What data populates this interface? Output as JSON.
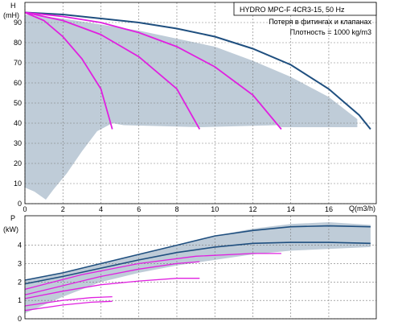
{
  "chart_data": [
    {
      "type": "line",
      "title": "HYDRO MPC-F 4CR3-15, 50 Hz",
      "annotations": [
        "Потеря в фитингах и клапанах",
        "Плотность = 1000 kg/m3"
      ],
      "ylabel": "H",
      "yunit": "(mH)",
      "xlabel": "Q(m3/h)",
      "xlim": [
        0,
        18.5
      ],
      "ylim": [
        0,
        100
      ],
      "xticks": [
        0,
        2,
        4,
        6,
        8,
        10,
        12,
        14,
        16
      ],
      "yticks": [
        0,
        10,
        20,
        30,
        40,
        50,
        60,
        70,
        80,
        90
      ],
      "grid": true,
      "colors": {
        "max_curve": "#1f4f7f",
        "pump_curves": "#e020e0",
        "area": "#bfccd8"
      },
      "envelope": [
        [
          0,
          94
        ],
        [
          2,
          92
        ],
        [
          4,
          89
        ],
        [
          6,
          86
        ],
        [
          8,
          82
        ],
        [
          10,
          78
        ],
        [
          12,
          71
        ],
        [
          14,
          63
        ],
        [
          16,
          53
        ],
        [
          17.5,
          42
        ],
        [
          17.5,
          38
        ],
        [
          13.5,
          38
        ],
        [
          13.3,
          39
        ],
        [
          9.2,
          38
        ],
        [
          5.2,
          39
        ],
        [
          4.6,
          40
        ],
        [
          3.8,
          36
        ],
        [
          3,
          26
        ],
        [
          2.2,
          15
        ],
        [
          1.5,
          7
        ],
        [
          1.1,
          2
        ],
        [
          0.5,
          6
        ],
        [
          0,
          8
        ]
      ],
      "series": [
        {
          "name": "",
          "role": "max",
          "points": [
            [
              0,
              95
            ],
            [
              2,
              94
            ],
            [
              4,
              92
            ],
            [
              6,
              90
            ],
            [
              8,
              87
            ],
            [
              10,
              83
            ],
            [
              12,
              77
            ],
            [
              14,
              69
            ],
            [
              16,
              57
            ],
            [
              17.6,
              44
            ],
            [
              18.2,
              37
            ]
          ]
        },
        {
          "name": "",
          "role": "pump",
          "points": [
            [
              0,
              95
            ],
            [
              1,
              91
            ],
            [
              2,
              83
            ],
            [
              3,
              72
            ],
            [
              4,
              57
            ],
            [
              4.6,
              37
            ]
          ]
        },
        {
          "name": "",
          "role": "pump",
          "points": [
            [
              0,
              95
            ],
            [
              2,
              91
            ],
            [
              4,
              84
            ],
            [
              6,
              73
            ],
            [
              8,
              57
            ],
            [
              9.2,
              37
            ]
          ]
        },
        {
          "name": "",
          "role": "pump",
          "points": [
            [
              0,
              95
            ],
            [
              2,
              93
            ],
            [
              4,
              90
            ],
            [
              6,
              85
            ],
            [
              8,
              78
            ],
            [
              10,
              68
            ],
            [
              12,
              54
            ],
            [
              13.5,
              37
            ]
          ]
        }
      ]
    },
    {
      "type": "line",
      "ylabel": "P",
      "yunit": "(kW)",
      "xlim": [
        0,
        18.5
      ],
      "ylim": [
        0,
        5.6
      ],
      "yticks": [
        0,
        1,
        2,
        3,
        4
      ],
      "grid": true,
      "envelope_upper": [
        [
          0,
          2.1
        ],
        [
          2,
          2.5
        ],
        [
          4,
          3
        ],
        [
          6,
          3.5
        ],
        [
          8,
          4
        ],
        [
          10,
          4.5
        ],
        [
          12,
          4.9
        ],
        [
          14,
          5.15
        ],
        [
          16,
          5.25
        ],
        [
          18.2,
          5.1
        ]
      ],
      "envelope_lower": [
        [
          18.2,
          3.9
        ],
        [
          14,
          3.7
        ],
        [
          12,
          3.5
        ],
        [
          10,
          3.2
        ],
        [
          8,
          2.9
        ],
        [
          6,
          2.5
        ],
        [
          4,
          2
        ],
        [
          2,
          1.2
        ],
        [
          0,
          0.3
        ]
      ],
      "series": [
        {
          "name": "",
          "role": "max",
          "points": [
            [
              0,
              2.1
            ],
            [
              2,
              2.5
            ],
            [
              4,
              3
            ],
            [
              6,
              3.5
            ],
            [
              8,
              4
            ],
            [
              10,
              4.5
            ],
            [
              12,
              4.8
            ],
            [
              14,
              5
            ],
            [
              16,
              5.05
            ],
            [
              18.2,
              5
            ]
          ]
        },
        {
          "name": "",
          "role": "max",
          "points": [
            [
              0,
              1.9
            ],
            [
              2,
              2.3
            ],
            [
              4,
              2.75
            ],
            [
              6,
              3.2
            ],
            [
              8,
              3.6
            ],
            [
              10,
              3.9
            ],
            [
              12,
              4.1
            ],
            [
              14,
              4.15
            ],
            [
              16,
              4.15
            ],
            [
              18.2,
              4.1
            ]
          ]
        },
        {
          "name": "",
          "role": "pump",
          "points": [
            [
              0,
              1.6
            ],
            [
              3,
              2.4
            ],
            [
              6,
              3
            ],
            [
              9,
              3.4
            ],
            [
              12,
              3.55
            ],
            [
              13.5,
              3.55
            ]
          ]
        },
        {
          "name": "",
          "role": "pump",
          "points": [
            [
              0,
              1.3
            ],
            [
              2,
              1.8
            ],
            [
              4,
              2.3
            ],
            [
              6,
              2.7
            ],
            [
              8,
              3
            ],
            [
              9.2,
              3.1
            ]
          ]
        },
        {
          "name": "",
          "role": "pump",
          "points": [
            [
              0,
              1.1
            ],
            [
              2,
              1.5
            ],
            [
              4,
              1.85
            ],
            [
              6,
              2.05
            ],
            [
              8,
              2.2
            ],
            [
              9.2,
              2.2
            ]
          ]
        },
        {
          "name": "",
          "role": "pump",
          "points": [
            [
              0,
              0.7
            ],
            [
              2,
              1
            ],
            [
              3.5,
              1.15
            ],
            [
              4.6,
              1.2
            ]
          ]
        },
        {
          "name": "",
          "role": "pump",
          "points": [
            [
              0,
              0.45
            ],
            [
              2,
              0.75
            ],
            [
              3.5,
              0.9
            ],
            [
              4.6,
              0.95
            ]
          ]
        }
      ]
    }
  ]
}
